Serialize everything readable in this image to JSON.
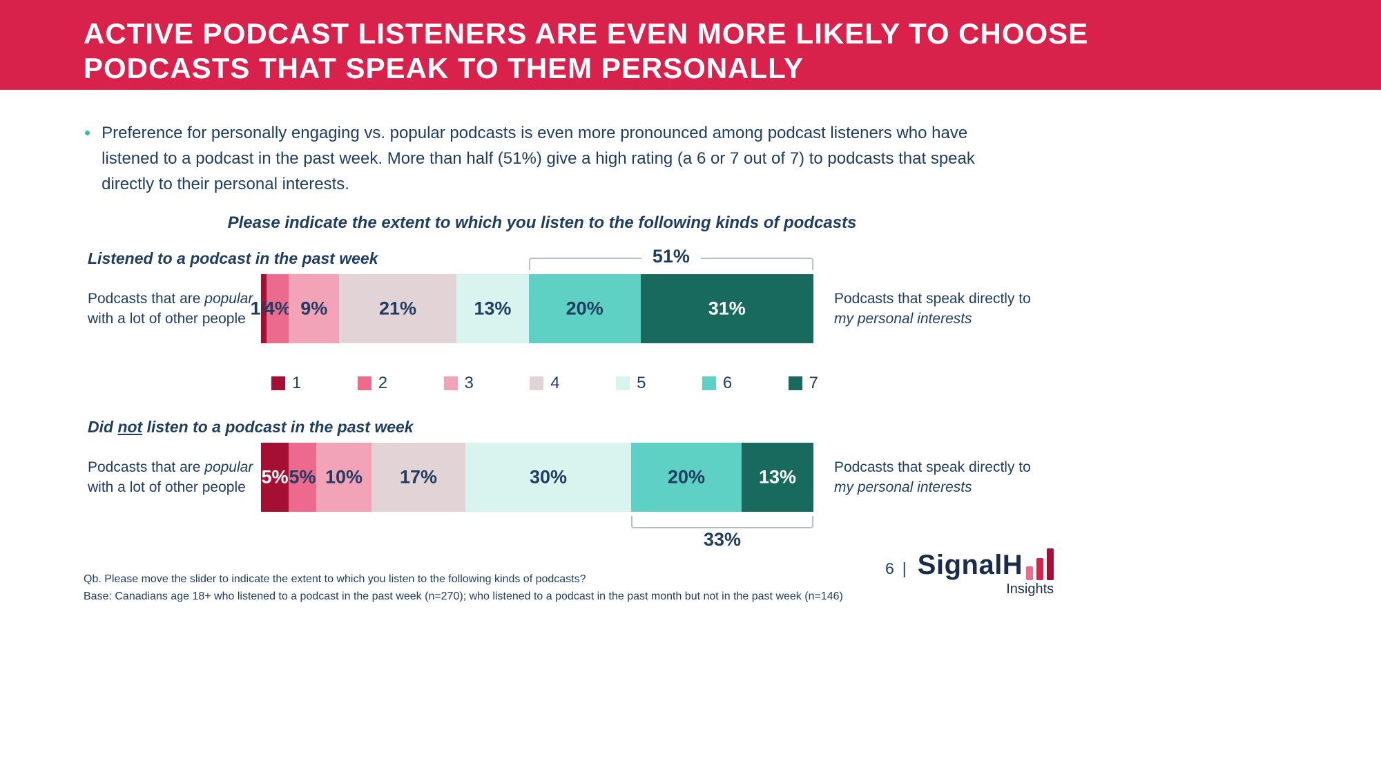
{
  "header": {
    "title": "ACTIVE PODCAST LISTENERS ARE EVEN MORE LIKELY TO CHOOSE PODCASTS THAT SPEAK TO THEM PERSONALLY"
  },
  "intro": {
    "bullet": "Preference for personally engaging vs. popular podcasts is even more pronounced among podcast listeners who have listened to a podcast in the past week. More than half (51%) give a high rating (a 6 or 7 out of 7) to podcasts that speak directly to their personal interests."
  },
  "question": "Please indicate the extent to which you listen to the following kinds of podcasts",
  "palette": [
    "#A50F33",
    "#EC6A8D",
    "#F3A3B8",
    "#E2D3D7",
    "#D9F3EF",
    "#5ED1C4",
    "#186A5E"
  ],
  "legend": {
    "labels": [
      "1",
      "2",
      "3",
      "4",
      "5",
      "6",
      "7"
    ]
  },
  "chart_data": [
    {
      "type": "bar",
      "stacked": true,
      "orientation": "horizontal",
      "group_label": {
        "pre": "Listened to a podcast in the past week",
        "underline": "",
        "post": ""
      },
      "categories": [
        "1",
        "2",
        "3",
        "4",
        "5",
        "6",
        "7"
      ],
      "values": [
        1,
        4,
        9,
        21,
        13,
        20,
        31
      ],
      "value_labels": [
        "1%",
        "4%",
        "9%",
        "21%",
        "13%",
        "20%",
        "31%"
      ],
      "label_colors": [
        "#1F3D60",
        "#1F3D60",
        "#1F3D60",
        "#1F3D60",
        "#1F3D60",
        "#1F3D60",
        "#FFFFFF"
      ],
      "bracket": {
        "label": "51%",
        "from_category": "6",
        "position": "above"
      },
      "left_label": {
        "line1_plain": "Podcasts that are ",
        "line1_italic": "popular",
        "line2": "with a lot of other people"
      },
      "right_label": {
        "line1": "Podcasts that speak directly to",
        "line2_italic": "my personal interests"
      },
      "xlim": [
        0,
        100
      ]
    },
    {
      "type": "bar",
      "stacked": true,
      "orientation": "horizontal",
      "group_label": {
        "pre": "Did ",
        "underline": "not",
        "post": " listen to a podcast in the past week"
      },
      "categories": [
        "1",
        "2",
        "3",
        "4",
        "5",
        "6",
        "7"
      ],
      "values": [
        5,
        5,
        10,
        17,
        30,
        20,
        13
      ],
      "value_labels": [
        "5%",
        "5%",
        "10%",
        "17%",
        "30%",
        "20%",
        "13%"
      ],
      "label_colors": [
        "#FFFFFF",
        "#1F3D60",
        "#1F3D60",
        "#1F3D60",
        "#1F3D60",
        "#1F3D60",
        "#FFFFFF"
      ],
      "bracket": {
        "label": "33%",
        "from_category": "6",
        "position": "below"
      },
      "left_label": {
        "line1_plain": "Podcasts that are ",
        "line1_italic": "popular",
        "line2": "with a lot of other people"
      },
      "right_label": {
        "line1": "Podcasts that speak directly to",
        "line2_italic": "my personal interests"
      },
      "xlim": [
        0,
        100
      ]
    }
  ],
  "footer": {
    "footnote1": "Qb. Please move the slider to indicate the extent to which you listen to the following kinds of podcasts?",
    "footnote2": "Base: Canadians age 18+ who listened to a podcast in the past week (n=270); who listened to a podcast in the past month but not in the past week (n=146)",
    "page_number": "6",
    "divider": "|",
    "logo_text": "SignalH",
    "logo_sub": "Insights"
  },
  "colors": {
    "banner": "#D8224C",
    "body_text": "#1F3D60",
    "bullet_accent": "#35BDB2",
    "bracket_line": "#B7BEC9",
    "logo_navy": "#1B2B4B",
    "logo_bars": [
      "#EC6A8D",
      "#D8224C",
      "#A50F33"
    ]
  }
}
